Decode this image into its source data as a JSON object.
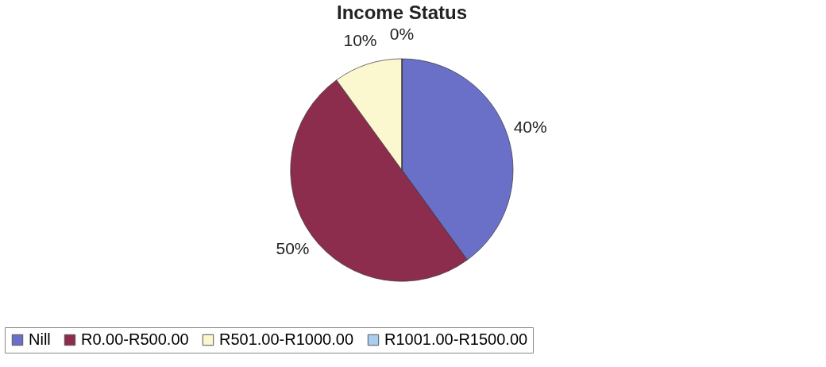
{
  "chart_data": {
    "type": "pie",
    "title": "Income Status",
    "categories": [
      "Nill",
      "R0.00-R500.00",
      "R501.00-R1000.00",
      "R1001.00-R1500.00"
    ],
    "values": [
      40,
      50,
      10,
      0
    ],
    "colors": [
      "#6a6fc8",
      "#8c2d4e",
      "#fbf7cf",
      "#a9cdf0"
    ],
    "value_labels": [
      "40%",
      "50%",
      "10%",
      "0%"
    ],
    "legend": "bottom"
  }
}
